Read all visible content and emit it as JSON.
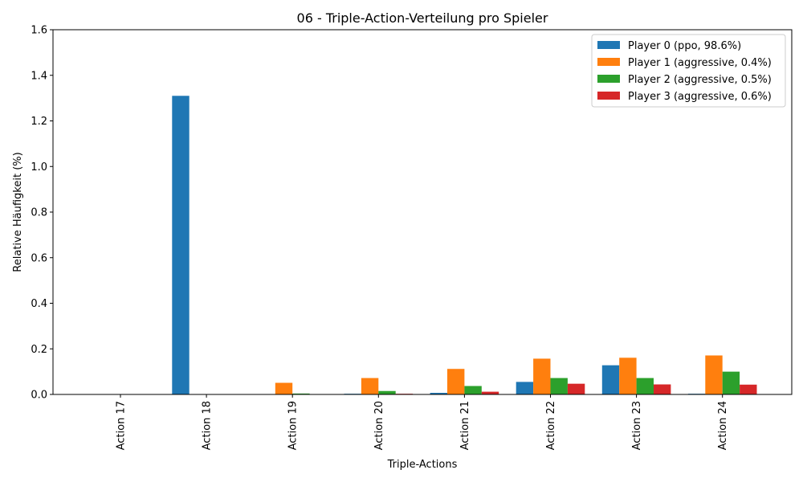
{
  "chart_data": {
    "type": "bar",
    "title": "06 - Triple-Action-Verteilung pro Spieler",
    "xlabel": "Triple-Actions",
    "ylabel": "Relative Häufigkeit (%)",
    "ylim": [
      0,
      1.6
    ],
    "yticks": [
      0.0,
      0.2,
      0.4,
      0.6,
      0.8,
      1.0,
      1.2,
      1.4,
      1.6
    ],
    "ytick_labels": [
      "0.0",
      "0.2",
      "0.4",
      "0.6",
      "0.8",
      "1.0",
      "1.2",
      "1.4",
      "1.6"
    ],
    "categories": [
      "Action 17",
      "Action 18",
      "Action 19",
      "Action 20",
      "Action 21",
      "Action 22",
      "Action 23",
      "Action 24"
    ],
    "legend_position": "top-right",
    "grid": false,
    "series": [
      {
        "name": "Player 0 (ppo, 98.6%)",
        "color": "#1f77b4",
        "values": [
          0.0,
          1.31,
          0.0,
          0.003,
          0.007,
          0.055,
          0.128,
          0.003
        ]
      },
      {
        "name": "Player 1 (aggressive, 0.4%)",
        "color": "#ff7f0e",
        "values": [
          0.0,
          0.0,
          0.051,
          0.072,
          0.112,
          0.157,
          0.161,
          0.171
        ]
      },
      {
        "name": "Player 2 (aggressive, 0.5%)",
        "color": "#2ca02c",
        "values": [
          0.0,
          0.0,
          0.004,
          0.015,
          0.037,
          0.072,
          0.072,
          0.1
        ]
      },
      {
        "name": "Player 3 (aggressive, 0.6%)",
        "color": "#d62728",
        "values": [
          0.0,
          0.0,
          0.001,
          0.003,
          0.012,
          0.047,
          0.044,
          0.043
        ]
      }
    ]
  }
}
